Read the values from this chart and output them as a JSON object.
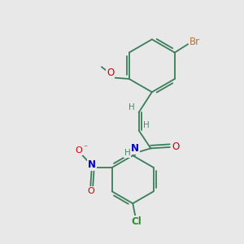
{
  "bg_color": "#e8e8e8",
  "bond_color": "#3a7d5a",
  "atom_colors": {
    "Br": "#b87333",
    "O": "#cc0000",
    "N_amide": "#0000cc",
    "N_nitro": "#0000cc",
    "Cl": "#2d8a2d",
    "H": "#4a8a6a",
    "C": "#3a7d5a"
  },
  "lw": 1.3
}
